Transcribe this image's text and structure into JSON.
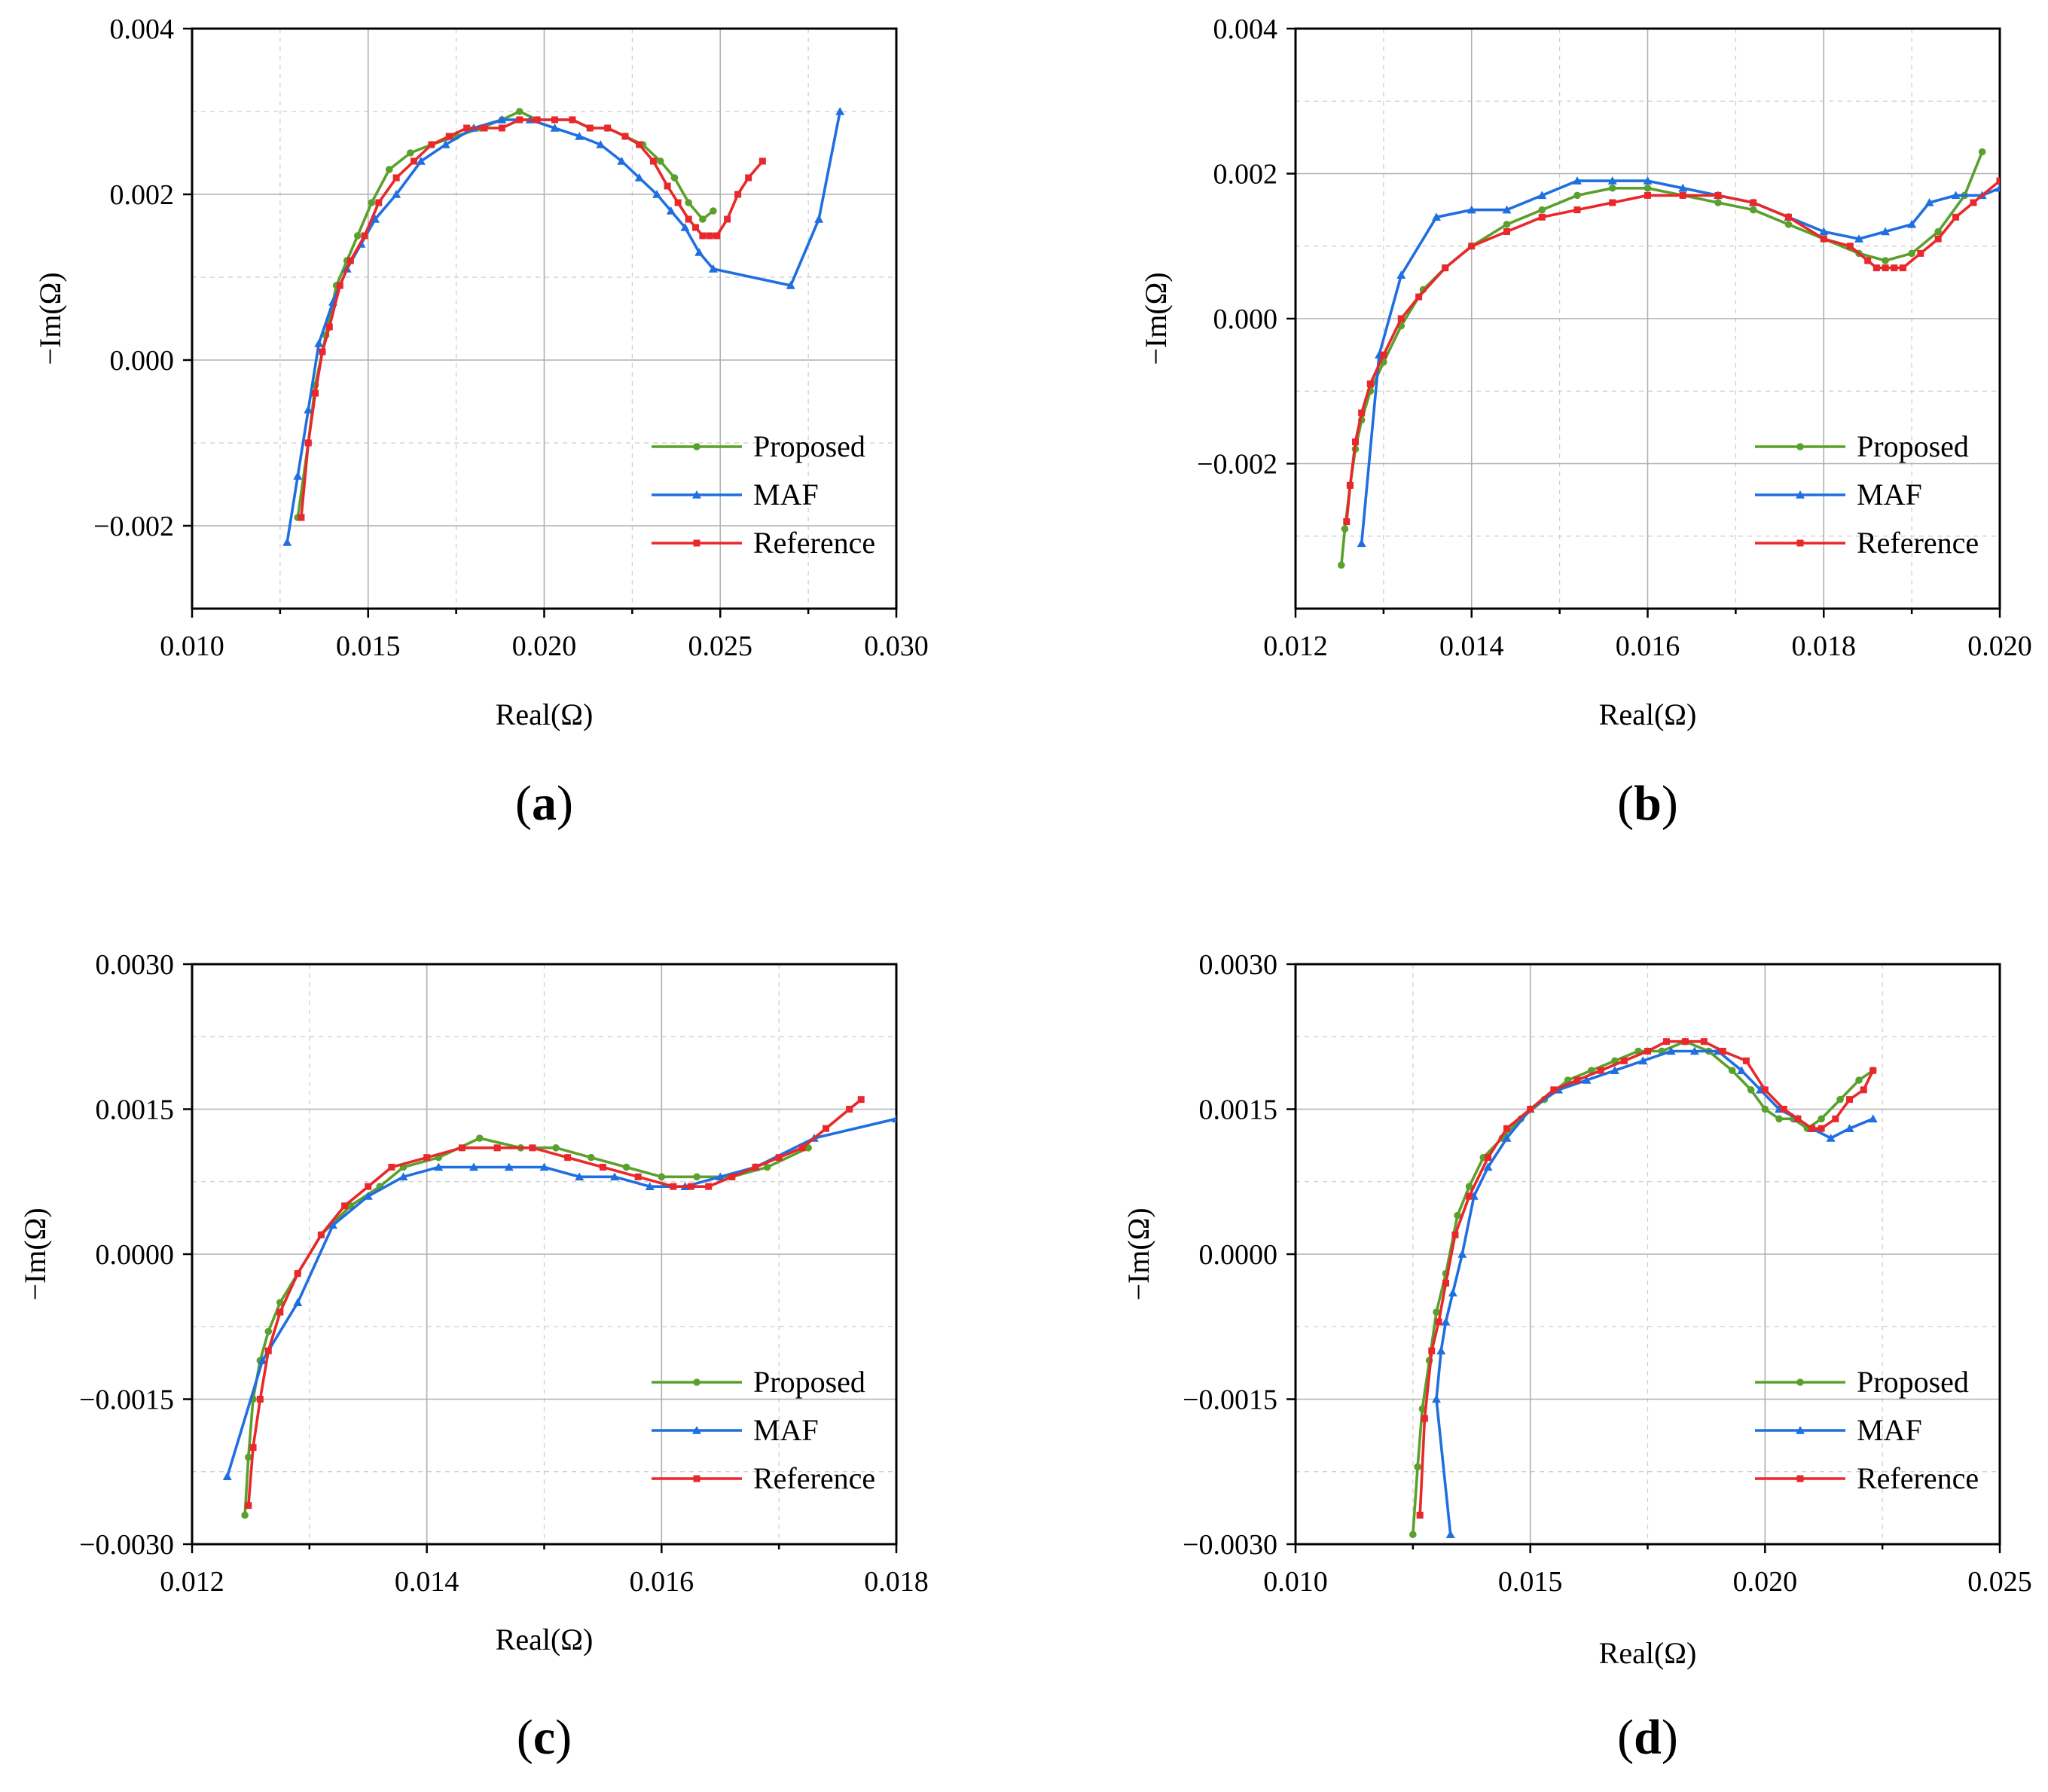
{
  "colors": {
    "Proposed": "#5aa02c",
    "MAF": "#1f6fe0",
    "Reference": "#e8282b"
  },
  "chart_data": [
    {
      "type": "line",
      "panel": "(a)",
      "panel_letter": "a",
      "xlabel": "Real(Ω)",
      "ylabel": "−Im(Ω)",
      "xlim": [
        0.01,
        0.03
      ],
      "ylim": [
        -0.003,
        0.004
      ],
      "xticks": [
        0.01,
        0.015,
        0.02,
        0.025,
        0.03
      ],
      "xtick_labels": [
        "0.010",
        "0.015",
        "0.020",
        "0.025",
        "0.030"
      ],
      "yticks": [
        -0.002,
        0.0,
        0.002,
        0.004
      ],
      "ytick_labels": [
        "−0.002",
        "0.000",
        "0.002",
        "0.004"
      ],
      "legend": {
        "position": "bottom-right",
        "entries": [
          "Proposed",
          "MAF",
          "Reference"
        ]
      },
      "series": [
        {
          "name": "Proposed",
          "x": [
            0.013,
            0.0133,
            0.0135,
            0.0138,
            0.0141,
            0.0144,
            0.0147,
            0.0151,
            0.0156,
            0.0162,
            0.0168,
            0.0175,
            0.0182,
            0.0188,
            0.0193,
            0.0198,
            0.0203,
            0.0208,
            0.0213,
            0.0218,
            0.0223,
            0.0228,
            0.0233,
            0.0237,
            0.0241,
            0.0245,
            0.0248
          ],
          "y": [
            -0.0019,
            -0.001,
            -0.0003,
            0.0003,
            0.0009,
            0.0012,
            0.0015,
            0.0019,
            0.0023,
            0.0025,
            0.0026,
            0.0027,
            0.0028,
            0.0029,
            0.003,
            0.0029,
            0.0029,
            0.0029,
            0.0028,
            0.0028,
            0.0027,
            0.0026,
            0.0024,
            0.0022,
            0.0019,
            0.0017,
            0.0018
          ]
        },
        {
          "name": "MAF",
          "x": [
            0.0127,
            0.013,
            0.0133,
            0.0136,
            0.014,
            0.0144,
            0.0148,
            0.0152,
            0.0158,
            0.0165,
            0.0172,
            0.018,
            0.0188,
            0.0196,
            0.0203,
            0.021,
            0.0216,
            0.0222,
            0.0227,
            0.0232,
            0.0236,
            0.024,
            0.0244,
            0.0248,
            0.027,
            0.0278,
            0.0284
          ],
          "y": [
            -0.0022,
            -0.0014,
            -0.0006,
            0.0002,
            0.0007,
            0.0011,
            0.0014,
            0.0017,
            0.002,
            0.0024,
            0.0026,
            0.0028,
            0.0029,
            0.0029,
            0.0028,
            0.0027,
            0.0026,
            0.0024,
            0.0022,
            0.002,
            0.0018,
            0.0016,
            0.0013,
            0.0011,
            0.0009,
            0.0017,
            0.003
          ]
        },
        {
          "name": "Reference",
          "x": [
            0.0131,
            0.0133,
            0.0135,
            0.0137,
            0.0139,
            0.0142,
            0.0145,
            0.0149,
            0.0153,
            0.0158,
            0.0163,
            0.0168,
            0.0173,
            0.0178,
            0.0183,
            0.0188,
            0.0193,
            0.0198,
            0.0203,
            0.0208,
            0.0213,
            0.0218,
            0.0223,
            0.0227,
            0.0231,
            0.0235,
            0.0238,
            0.0241,
            0.0243,
            0.0245,
            0.0247,
            0.0249,
            0.0252,
            0.0255,
            0.0258,
            0.0262
          ],
          "y": [
            -0.0019,
            -0.001,
            -0.0004,
            0.0001,
            0.0004,
            0.0009,
            0.0012,
            0.0015,
            0.0019,
            0.0022,
            0.0024,
            0.0026,
            0.0027,
            0.0028,
            0.0028,
            0.0028,
            0.0029,
            0.0029,
            0.0029,
            0.0029,
            0.0028,
            0.0028,
            0.0027,
            0.0026,
            0.0024,
            0.0021,
            0.0019,
            0.0017,
            0.0016,
            0.0015,
            0.0015,
            0.0015,
            0.0017,
            0.002,
            0.0022,
            0.0024
          ]
        }
      ]
    },
    {
      "type": "line",
      "panel": "(b)",
      "panel_letter": "b",
      "xlabel": "Real(Ω)",
      "ylabel": "−Im(Ω)",
      "xlim": [
        0.012,
        0.02
      ],
      "ylim": [
        -0.004,
        0.004
      ],
      "xticks": [
        0.012,
        0.014,
        0.016,
        0.018,
        0.02
      ],
      "xtick_labels": [
        "0.012",
        "0.014",
        "0.016",
        "0.018",
        "0.020"
      ],
      "yticks": [
        -0.002,
        0.0,
        0.002,
        0.004
      ],
      "ytick_labels": [
        "−0.002",
        "0.000",
        "0.002",
        "0.004"
      ],
      "legend": {
        "position": "bottom-right",
        "entries": [
          "Proposed",
          "MAF",
          "Reference"
        ]
      },
      "series": [
        {
          "name": "Proposed",
          "x": [
            0.01252,
            0.01256,
            0.01262,
            0.01268,
            0.01275,
            0.01285,
            0.013,
            0.0132,
            0.01345,
            0.0137,
            0.014,
            0.0144,
            0.0148,
            0.0152,
            0.0156,
            0.016,
            0.0164,
            0.0168,
            0.0172,
            0.0176,
            0.018,
            0.0184,
            0.0187,
            0.019,
            0.0193,
            0.0196,
            0.0198
          ],
          "y": [
            -0.0034,
            -0.0029,
            -0.0023,
            -0.0018,
            -0.0014,
            -0.001,
            -0.0006,
            -0.0001,
            0.0004,
            0.0007,
            0.001,
            0.0013,
            0.0015,
            0.0017,
            0.0018,
            0.0018,
            0.0017,
            0.0016,
            0.0015,
            0.0013,
            0.0011,
            0.0009,
            0.0008,
            0.0009,
            0.0012,
            0.0017,
            0.0023
          ]
        },
        {
          "name": "MAF",
          "x": [
            0.01275,
            0.01295,
            0.0132,
            0.0136,
            0.014,
            0.0144,
            0.0148,
            0.0152,
            0.0156,
            0.016,
            0.0164,
            0.0168,
            0.0172,
            0.0176,
            0.018,
            0.0184,
            0.0187,
            0.019,
            0.0192,
            0.0195,
            0.0198,
            0.02
          ],
          "y": [
            -0.0031,
            -0.0005,
            0.0006,
            0.0014,
            0.0015,
            0.0015,
            0.0017,
            0.0019,
            0.0019,
            0.0019,
            0.0018,
            0.0017,
            0.0016,
            0.0014,
            0.0012,
            0.0011,
            0.0012,
            0.0013,
            0.0016,
            0.0017,
            0.0017,
            0.0018
          ]
        },
        {
          "name": "Reference",
          "x": [
            0.01258,
            0.01262,
            0.01268,
            0.01275,
            0.01285,
            0.013,
            0.0132,
            0.0134,
            0.0137,
            0.014,
            0.0144,
            0.0148,
            0.0152,
            0.0156,
            0.016,
            0.0164,
            0.0168,
            0.0172,
            0.0176,
            0.018,
            0.0183,
            0.0185,
            0.0186,
            0.0187,
            0.0188,
            0.0189,
            0.0191,
            0.0193,
            0.0195,
            0.0197,
            0.02
          ],
          "y": [
            -0.0028,
            -0.0023,
            -0.0017,
            -0.0013,
            -0.0009,
            -0.0005,
            0.0,
            0.0003,
            0.0007,
            0.001,
            0.0012,
            0.0014,
            0.0015,
            0.0016,
            0.0017,
            0.0017,
            0.0017,
            0.0016,
            0.0014,
            0.0011,
            0.001,
            0.0008,
            0.0007,
            0.0007,
            0.0007,
            0.0007,
            0.0009,
            0.0011,
            0.0014,
            0.0016,
            0.0019
          ]
        }
      ]
    },
    {
      "type": "line",
      "panel": "(c)",
      "panel_letter": "c",
      "xlabel": "Real(Ω)",
      "ylabel": "−Im(Ω)",
      "xlim": [
        0.012,
        0.018
      ],
      "ylim": [
        -0.003,
        0.003
      ],
      "xticks": [
        0.012,
        0.014,
        0.016,
        0.018
      ],
      "xtick_labels": [
        "0.012",
        "0.014",
        "0.016",
        "0.018"
      ],
      "yticks": [
        -0.003,
        -0.0015,
        0.0,
        0.0015,
        0.003
      ],
      "ytick_labels": [
        "−0.0030",
        "−0.0015",
        "0.0000",
        "0.0015",
        "0.0030"
      ],
      "legend": {
        "position": "bottom-right",
        "entries": [
          "Proposed",
          "MAF",
          "Reference"
        ]
      },
      "series": [
        {
          "name": "Proposed",
          "x": [
            0.01245,
            0.01248,
            0.01252,
            0.01258,
            0.01265,
            0.01275,
            0.0129,
            0.0131,
            0.01335,
            0.0136,
            0.0138,
            0.0141,
            0.01445,
            0.0148,
            0.0151,
            0.0154,
            0.0157,
            0.016,
            0.0163,
            0.0166,
            0.0169,
            0.01725
          ],
          "y": [
            -0.0027,
            -0.0021,
            -0.0015,
            -0.0011,
            -0.0008,
            -0.0005,
            -0.0002,
            0.0002,
            0.0005,
            0.0007,
            0.0009,
            0.001,
            0.0012,
            0.0011,
            0.0011,
            0.001,
            0.0009,
            0.0008,
            0.0008,
            0.0008,
            0.0009,
            0.0011
          ]
        },
        {
          "name": "MAF",
          "x": [
            0.0123,
            0.0126,
            0.0129,
            0.0132,
            0.0135,
            0.0138,
            0.0141,
            0.0144,
            0.0147,
            0.015,
            0.0153,
            0.0156,
            0.0159,
            0.0162,
            0.0165,
            0.0168,
            0.0173,
            0.018
          ],
          "y": [
            -0.0023,
            -0.0011,
            -0.0005,
            0.0003,
            0.0006,
            0.0008,
            0.0009,
            0.0009,
            0.0009,
            0.0009,
            0.0008,
            0.0008,
            0.0007,
            0.0007,
            0.0008,
            0.0009,
            0.0012,
            0.0014
          ]
        },
        {
          "name": "Reference",
          "x": [
            0.01248,
            0.01252,
            0.01258,
            0.01265,
            0.01275,
            0.0129,
            0.0131,
            0.0133,
            0.0135,
            0.0137,
            0.014,
            0.0143,
            0.0146,
            0.0149,
            0.0152,
            0.0155,
            0.0158,
            0.0161,
            0.01625,
            0.0164,
            0.0166,
            0.0168,
            0.017,
            0.0172,
            0.0174,
            0.0176,
            0.0177
          ],
          "y": [
            -0.0026,
            -0.002,
            -0.0015,
            -0.001,
            -0.0006,
            -0.0002,
            0.0002,
            0.0005,
            0.0007,
            0.0009,
            0.001,
            0.0011,
            0.0011,
            0.0011,
            0.001,
            0.0009,
            0.0008,
            0.0007,
            0.0007,
            0.0007,
            0.0008,
            0.0009,
            0.001,
            0.0011,
            0.0013,
            0.0015,
            0.0016
          ]
        }
      ]
    },
    {
      "type": "line",
      "panel": "(d)",
      "panel_letter": "d",
      "xlabel": "Real(Ω)",
      "ylabel": "−Im(Ω)",
      "xlim": [
        0.01,
        0.025
      ],
      "ylim": [
        -0.003,
        0.003
      ],
      "xticks": [
        0.01,
        0.015,
        0.02,
        0.025
      ],
      "xtick_labels": [
        "0.010",
        "0.015",
        "0.020",
        "0.025"
      ],
      "yticks": [
        -0.003,
        -0.0015,
        0.0,
        0.0015,
        0.003
      ],
      "ytick_labels": [
        "−0.0030",
        "−0.0015",
        "0.0000",
        "0.0015",
        "0.0030"
      ],
      "legend": {
        "position": "bottom-right",
        "entries": [
          "Proposed",
          "MAF",
          "Reference"
        ]
      },
      "series": [
        {
          "name": "Proposed",
          "x": [
            0.0125,
            0.0126,
            0.0127,
            0.01285,
            0.013,
            0.0132,
            0.01345,
            0.0137,
            0.014,
            0.0144,
            0.0148,
            0.0153,
            0.0158,
            0.0163,
            0.0168,
            0.0173,
            0.0178,
            0.0183,
            0.0188,
            0.0193,
            0.0197,
            0.02,
            0.0203,
            0.0206,
            0.0209,
            0.0212,
            0.0216,
            0.022,
            0.0223
          ],
          "y": [
            -0.0029,
            -0.0022,
            -0.0016,
            -0.0011,
            -0.0006,
            -0.0002,
            0.0004,
            0.0007,
            0.001,
            0.0012,
            0.0014,
            0.0016,
            0.0018,
            0.0019,
            0.002,
            0.0021,
            0.0021,
            0.0022,
            0.0021,
            0.0019,
            0.0017,
            0.0015,
            0.0014,
            0.0014,
            0.0013,
            0.0014,
            0.0016,
            0.0018,
            0.0019
          ]
        },
        {
          "name": "MAF",
          "x": [
            0.0133,
            0.013,
            0.0131,
            0.0132,
            0.01335,
            0.01355,
            0.0138,
            0.0141,
            0.0145,
            0.015,
            0.0156,
            0.0162,
            0.0168,
            0.0174,
            0.018,
            0.0185,
            0.019,
            0.0195,
            0.0199,
            0.0203,
            0.0207,
            0.021,
            0.0214,
            0.0218,
            0.0223
          ],
          "y": [
            -0.0029,
            -0.0015,
            -0.001,
            -0.0007,
            -0.0004,
            0.0,
            0.0006,
            0.0009,
            0.0012,
            0.0015,
            0.0017,
            0.0018,
            0.0019,
            0.002,
            0.0021,
            0.0021,
            0.0021,
            0.0019,
            0.0017,
            0.0015,
            0.0014,
            0.0013,
            0.0012,
            0.0013,
            0.0014
          ]
        },
        {
          "name": "Reference",
          "x": [
            0.01265,
            0.01275,
            0.0129,
            0.01305,
            0.0132,
            0.0134,
            0.0137,
            0.0141,
            0.0145,
            0.015,
            0.0155,
            0.016,
            0.0165,
            0.017,
            0.0175,
            0.0179,
            0.0183,
            0.0187,
            0.0191,
            0.0196,
            0.02,
            0.0204,
            0.0207,
            0.021,
            0.0212,
            0.0215,
            0.0218,
            0.0221,
            0.0223
          ],
          "y": [
            -0.0027,
            -0.0017,
            -0.001,
            -0.0007,
            -0.0003,
            0.0002,
            0.0006,
            0.001,
            0.0013,
            0.0015,
            0.0017,
            0.0018,
            0.0019,
            0.002,
            0.0021,
            0.0022,
            0.0022,
            0.0022,
            0.0021,
            0.002,
            0.0017,
            0.0015,
            0.0014,
            0.0013,
            0.0013,
            0.0014,
            0.0016,
            0.0017,
            0.0019
          ]
        }
      ]
    }
  ]
}
